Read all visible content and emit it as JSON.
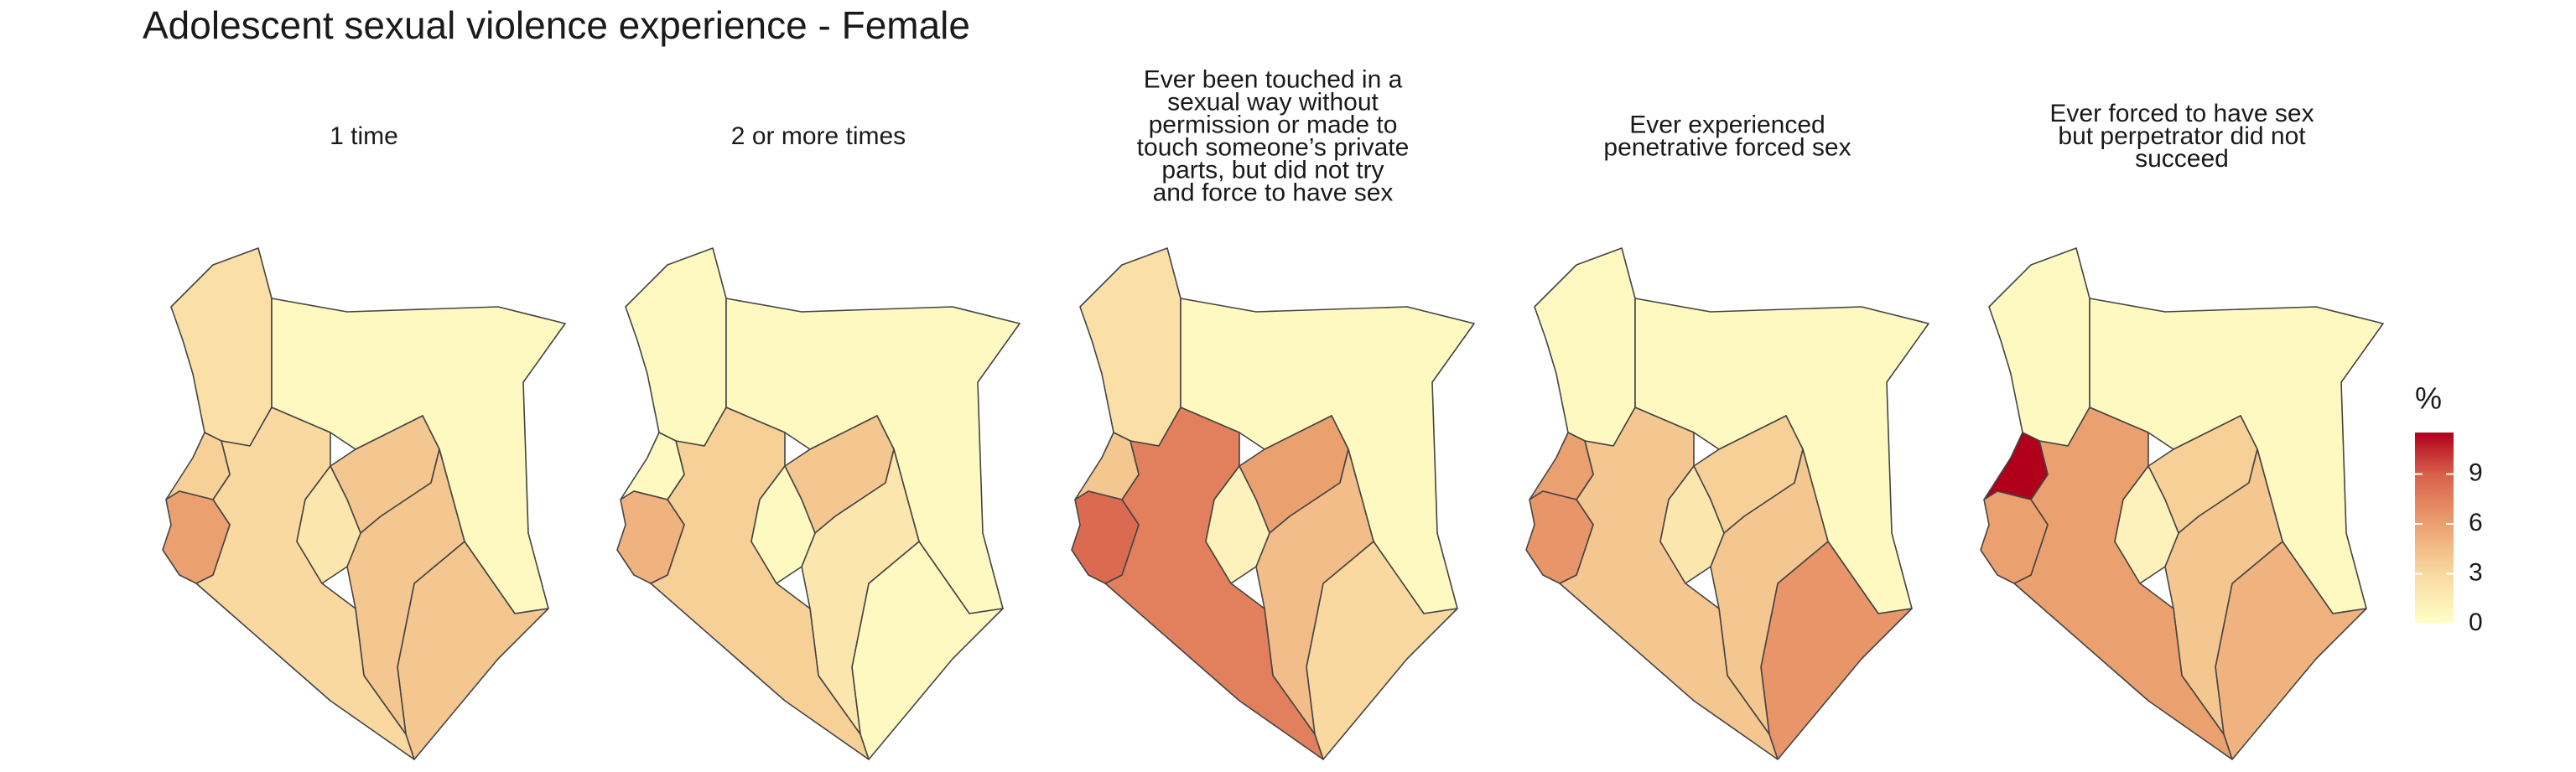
{
  "chart_data": {
    "type": "choropleth",
    "title": "Adolescent sexual violence experience - Female",
    "legend_title": "%",
    "lim": [
      0,
      11.5
    ],
    "ticks": [
      0,
      3,
      6,
      9
    ],
    "colorscale": [
      [
        0,
        "#ffffc8"
      ],
      [
        3,
        "#f9d9a0"
      ],
      [
        6,
        "#eba070"
      ],
      [
        9,
        "#d8604a"
      ],
      [
        11.5,
        "#b0001c"
      ]
    ],
    "panels": [
      {
        "title": [
          "1 time"
        ],
        "values": [
          2.5,
          0.5,
          4,
          4,
          4,
          3,
          3.5,
          6,
          2
        ]
      },
      {
        "title": [
          "2 or more times"
        ],
        "values": [
          0.5,
          0.5,
          4,
          0.5,
          2,
          3.5,
          0.5,
          5,
          0.5
        ]
      },
      {
        "title": [
          "Ever been touched in a",
          "sexual way without",
          "permission or made to",
          "touch someone’s private",
          "parts, but did not try",
          "and force to have sex"
        ],
        "values": [
          2.5,
          0.5,
          6,
          3,
          4.5,
          7.5,
          4,
          8.5,
          1
        ]
      },
      {
        "title": [
          "Ever experienced",
          "penetrative forced sex"
        ],
        "values": [
          0.5,
          0.5,
          3.5,
          6.5,
          4,
          4,
          6,
          6.5,
          2
        ]
      },
      {
        "title": [
          "Ever forced to have sex",
          "but perpetrator did not",
          "succeed"
        ],
        "values": [
          0.5,
          0.5,
          3.5,
          5,
          4,
          6,
          11.5,
          6,
          1
        ]
      }
    ]
  }
}
